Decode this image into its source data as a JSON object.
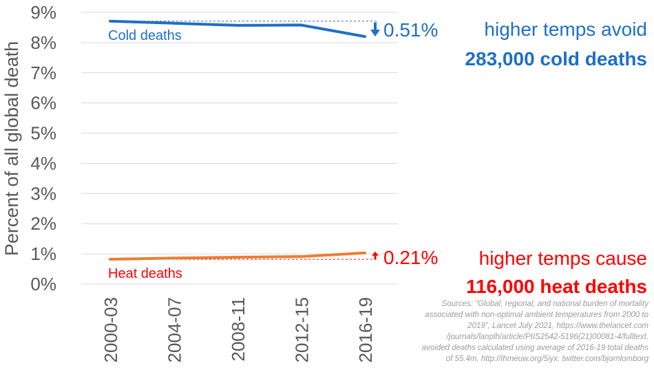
{
  "chart_data": {
    "type": "line",
    "categories": [
      "2000-03",
      "2004-07",
      "2008-11",
      "2012-15",
      "2016-19"
    ],
    "series": [
      {
        "name": "Cold deaths",
        "color": "#1f6fc5",
        "values": [
          8.71,
          8.64,
          8.57,
          8.58,
          8.2
        ]
      },
      {
        "name": "Heat deaths",
        "color": "#ed7d31",
        "values": [
          0.82,
          0.86,
          0.89,
          0.91,
          1.03
        ]
      }
    ],
    "ylabel": "Percent of all global death",
    "ylim": [
      0,
      9
    ],
    "yticks": [
      "0%",
      "1%",
      "2%",
      "3%",
      "4%",
      "5%",
      "6%",
      "7%",
      "8%",
      "9%"
    ],
    "grid": true,
    "annotations": {
      "cold_delta": "0.51%",
      "heat_delta": "0.21%",
      "cold_callout_line1": "higher temps avoid",
      "cold_callout_line2": "283,000 cold deaths",
      "heat_callout_line1": "higher temps cause",
      "heat_callout_line2": "116,000 heat deaths"
    },
    "colors": {
      "cold": "#1f6fc5",
      "heat": "#ff0000",
      "heat_line": "#ed7d31",
      "cold_text": "#1f6fc5",
      "axis_text": "#595959",
      "grid": "#d9d9d9"
    }
  },
  "source_lines": [
    "Sources: “Global, regional, and national burden of mortality",
    "associated with non-optimal ambient temperatures from 2000 to",
    "2019”, Lancet July 2021, https://www.thelancet.com",
    "/journals/lanplh/article/PIIS2542-5196(21)00081-4/fulltext,",
    "avoided deaths calculated using average of 2016-19 total deaths",
    "of 55.4m, http://ihmeuw.org/5iyx. twitter.com/bjornlomborg"
  ]
}
